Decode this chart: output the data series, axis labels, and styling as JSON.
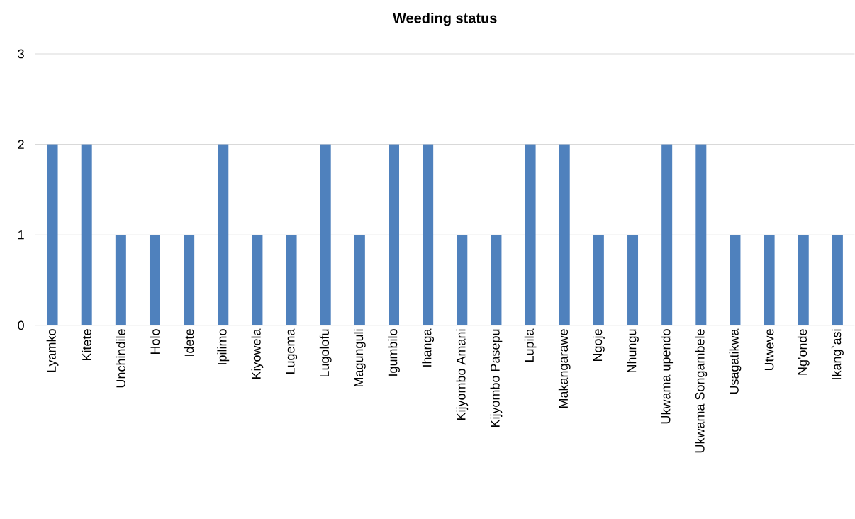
{
  "chart_data": {
    "type": "bar",
    "title": "Weeding status",
    "categories": [
      "Lyamko",
      "Kitete",
      "Unchindile",
      "Holo",
      "Idete",
      "Ipilimo",
      "Kiyowela",
      "Lugema",
      "Lugolofu",
      "Magunguli",
      "Igumbilo",
      "Ihanga",
      "Kijyombo Amani",
      "Kijyombo Pasepu",
      "Lupila",
      "Makangarawe",
      "Ngoje",
      "Nhungu",
      "Ukwama upendo",
      "Ukwama Songambele",
      "Usagatikwa",
      "Utweve",
      "Ng'onde",
      "Ikang`asi"
    ],
    "values": [
      2,
      2,
      1,
      1,
      1,
      2,
      1,
      1,
      2,
      1,
      2,
      2,
      1,
      1,
      2,
      2,
      1,
      1,
      2,
      2,
      1,
      1,
      1,
      1
    ],
    "color": "#4f81bd",
    "ylim": [
      0,
      3
    ],
    "yticks": [
      0,
      1,
      2,
      3
    ],
    "grid": "y"
  }
}
